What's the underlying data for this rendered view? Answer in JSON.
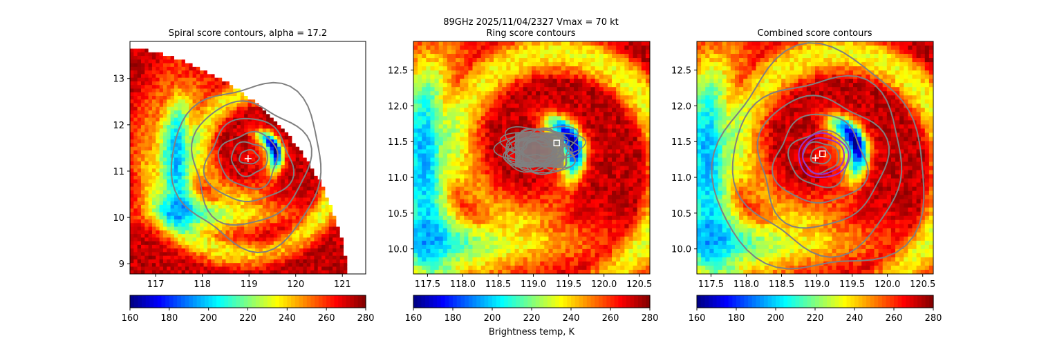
{
  "suptitle": {
    "line1": "89GHz  2025/11/04/2327    Vmax = 70 kt",
    "line2": "Ring score contours"
  },
  "chart_data": [
    {
      "type": "heatmap",
      "title": "Spiral score contours, alpha = 17.2",
      "xlim": [
        116.45,
        121.5
      ],
      "ylim": [
        8.78,
        13.8
      ],
      "xticks": [
        "117",
        "118",
        "119",
        "120",
        "121"
      ],
      "xtick_values": [
        117,
        118,
        119,
        120,
        121
      ],
      "yticks": [
        "9",
        "10",
        "11",
        "12",
        "13"
      ],
      "ytick_values": [
        9,
        10,
        11,
        12,
        13
      ],
      "colormap": "jet",
      "clim": [
        160,
        280
      ],
      "colorbar_ticks": [
        "160",
        "180",
        "200",
        "220",
        "240",
        "260",
        "280"
      ],
      "field": {
        "center": [
          119.1,
          11.3
        ],
        "eye_radius": 0.13,
        "eyewall_offset": [
          0.55,
          0.25
        ],
        "swath_edge": "right-arc"
      },
      "markers": [
        {
          "kind": "plus",
          "x": 118.98,
          "y": 11.27
        }
      ],
      "contour_color": "#808080"
    },
    {
      "type": "heatmap",
      "title": "Ring score contours",
      "xlim": [
        117.3,
        120.65
      ],
      "ylim": [
        9.65,
        12.9
      ],
      "xticks": [
        "117.5",
        "118.0",
        "118.5",
        "119.0",
        "119.5",
        "120.0",
        "120.5"
      ],
      "xtick_values": [
        117.5,
        118.0,
        118.5,
        119.0,
        119.5,
        120.0,
        120.5
      ],
      "yticks": [
        "10.0",
        "10.5",
        "11.0",
        "11.5",
        "12.0",
        "12.5"
      ],
      "ytick_values": [
        10.0,
        10.5,
        11.0,
        11.5,
        12.0,
        12.5
      ],
      "colormap": "jet",
      "clim": [
        160,
        280
      ],
      "colorbar_ticks": [
        "160",
        "180",
        "200",
        "220",
        "240",
        "260",
        "280"
      ],
      "colorbar_label": "Brightness temp, K",
      "markers": [
        {
          "kind": "square",
          "x": 119.33,
          "y": 11.48
        }
      ],
      "contour_color": "#808080"
    },
    {
      "type": "heatmap",
      "title": "Combined score contours",
      "xlim": [
        117.3,
        120.65
      ],
      "ylim": [
        9.65,
        12.9
      ],
      "xticks": [
        "117.5",
        "118.0",
        "118.5",
        "119.0",
        "119.5",
        "120.0",
        "120.5"
      ],
      "xtick_values": [
        117.5,
        118.0,
        118.5,
        119.0,
        119.5,
        120.0,
        120.5
      ],
      "yticks": [
        "10.0",
        "10.5",
        "11.0",
        "11.5",
        "12.0",
        "12.5"
      ],
      "ytick_values": [
        10.0,
        10.5,
        11.0,
        11.5,
        12.0,
        12.5
      ],
      "colormap": "jet",
      "clim": [
        160,
        280
      ],
      "colorbar_ticks": [
        "160",
        "180",
        "200",
        "220",
        "240",
        "260",
        "280"
      ],
      "markers": [
        {
          "kind": "plus",
          "x": 118.98,
          "y": 11.27
        },
        {
          "kind": "square",
          "x": 119.08,
          "y": 11.33
        }
      ],
      "contour_color": "#808080",
      "highlight_contour_color": "#9933cc"
    }
  ]
}
